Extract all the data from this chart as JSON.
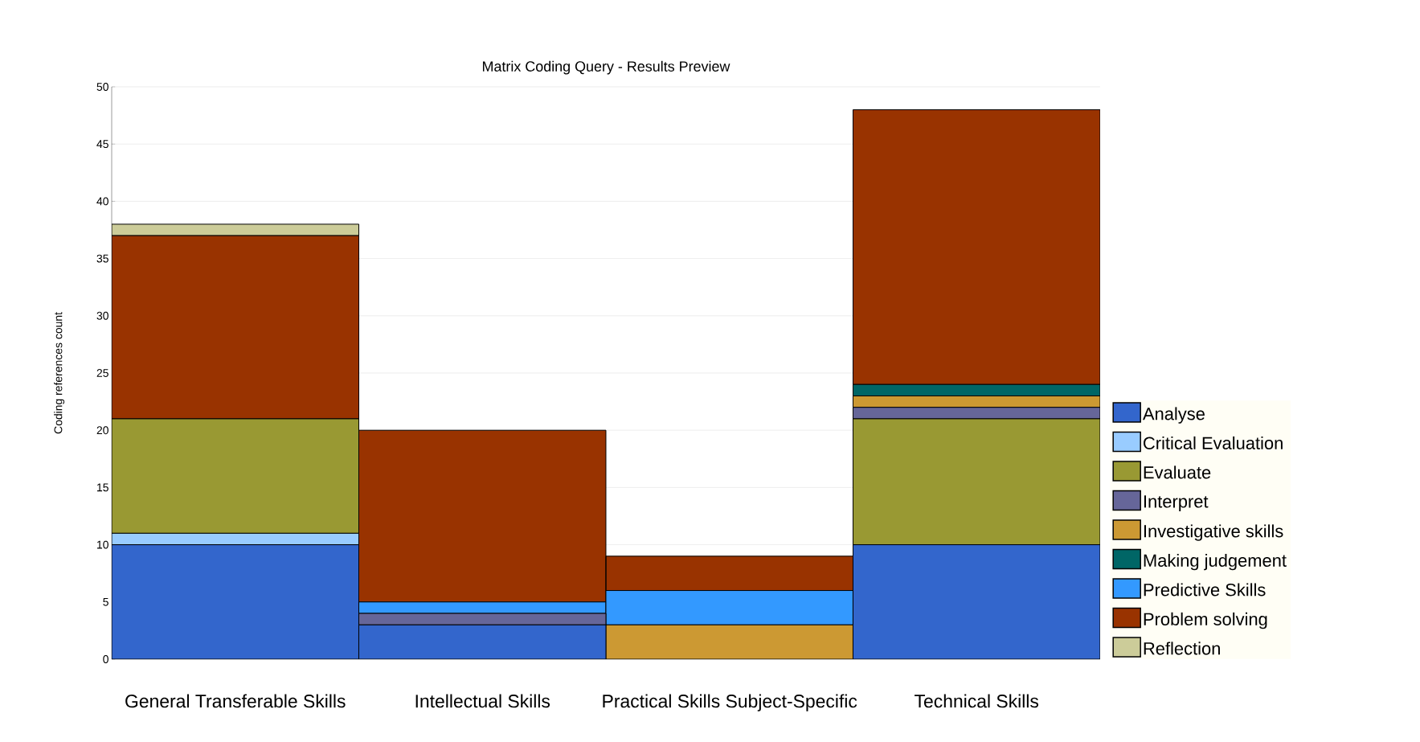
{
  "chart_data": {
    "type": "bar",
    "stacked": true,
    "title": "Matrix Coding Query - Results Preview",
    "ylabel": "Coding references count",
    "categories": [
      "General Transferable Skills",
      "Intellectual Skills",
      "Practical Skills Subject-Specific",
      "Technical Skills"
    ],
    "ylim": [
      0,
      50
    ],
    "yticks": [
      0,
      5,
      10,
      15,
      20,
      25,
      30,
      35,
      40,
      45,
      50
    ],
    "grid": "y",
    "legend": "right",
    "series": [
      {
        "name": "Analyse",
        "color": "#3366cc",
        "values": [
          10,
          3,
          null,
          10
        ]
      },
      {
        "name": "Critical Evaluation",
        "color": "#99ccff",
        "values": [
          1,
          null,
          null,
          null
        ]
      },
      {
        "name": "Evaluate",
        "color": "#999933",
        "values": [
          10,
          null,
          null,
          11
        ]
      },
      {
        "name": "Interpret",
        "color": "#666699",
        "values": [
          null,
          1,
          null,
          1
        ]
      },
      {
        "name": "Investigative skills",
        "color": "#cc9933",
        "values": [
          null,
          null,
          3,
          1
        ]
      },
      {
        "name": "Making judgement",
        "color": "#006666",
        "values": [
          null,
          null,
          null,
          1
        ]
      },
      {
        "name": "Predictive Skills",
        "color": "#3399ff",
        "values": [
          null,
          1,
          3,
          null
        ]
      },
      {
        "name": "Problem solving",
        "color": "#993300",
        "values": [
          16,
          15,
          3,
          24
        ]
      },
      {
        "name": "Reflection",
        "color": "#cccc99",
        "values": [
          1,
          null,
          null,
          null
        ]
      }
    ]
  }
}
